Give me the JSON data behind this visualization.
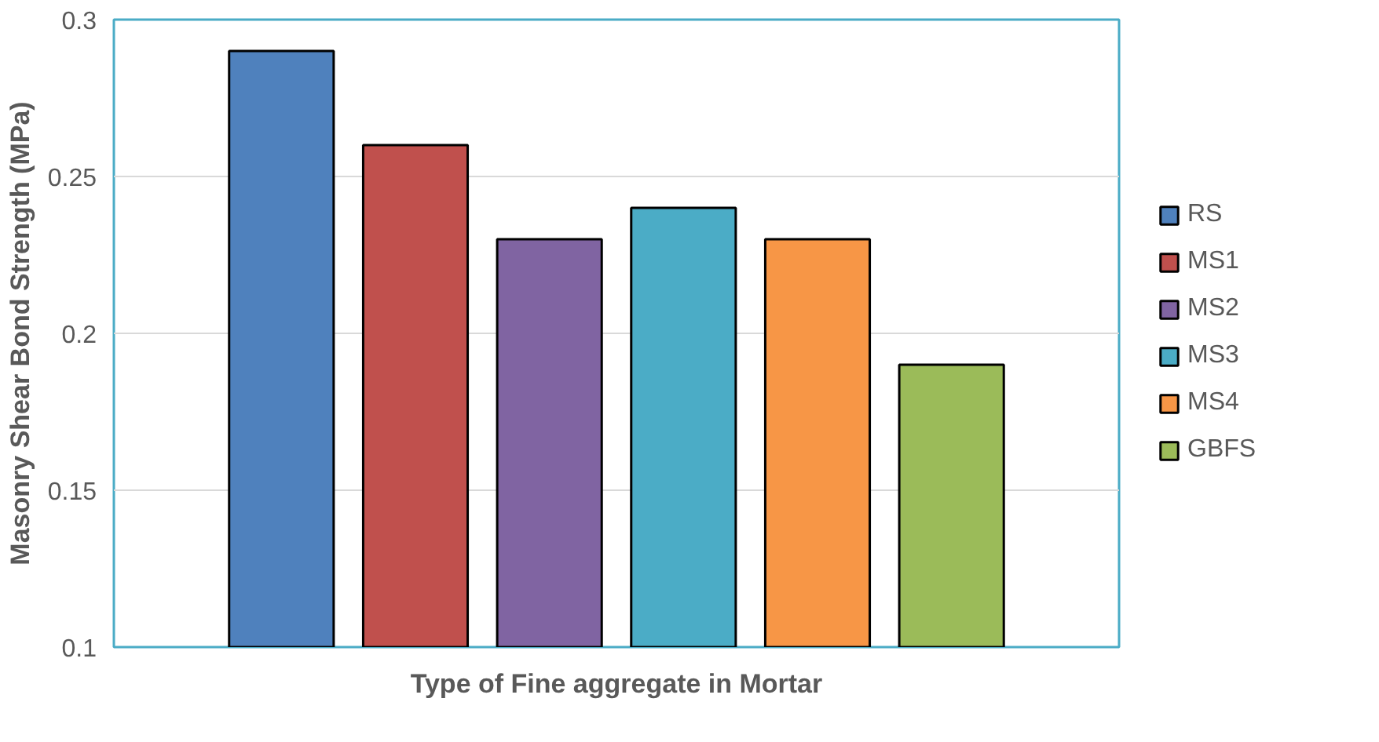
{
  "chart_data": {
    "type": "bar",
    "categories": [
      null
    ],
    "xlabel": "Type of Fine aggregate in Mortar",
    "ylabel": "Masonry Shear Bond Strength (MPa)",
    "ylim": [
      0.1,
      0.3
    ],
    "yticks": [
      0.1,
      0.15,
      0.2,
      0.25,
      0.3
    ],
    "grid": "y",
    "legend": "right",
    "series": [
      {
        "name": "RS",
        "color": "#4f81bd",
        "values": [
          0.29
        ]
      },
      {
        "name": "MS1",
        "color": "#c0504d",
        "values": [
          0.26
        ]
      },
      {
        "name": "MS2",
        "color": "#8064a2",
        "values": [
          0.23
        ]
      },
      {
        "name": "MS3",
        "color": "#4bacc6",
        "values": [
          0.24
        ]
      },
      {
        "name": "MS4",
        "color": "#f79646",
        "values": [
          0.23
        ]
      },
      {
        "name": "GBFS",
        "color": "#9bbb59",
        "values": [
          0.19
        ]
      }
    ]
  }
}
